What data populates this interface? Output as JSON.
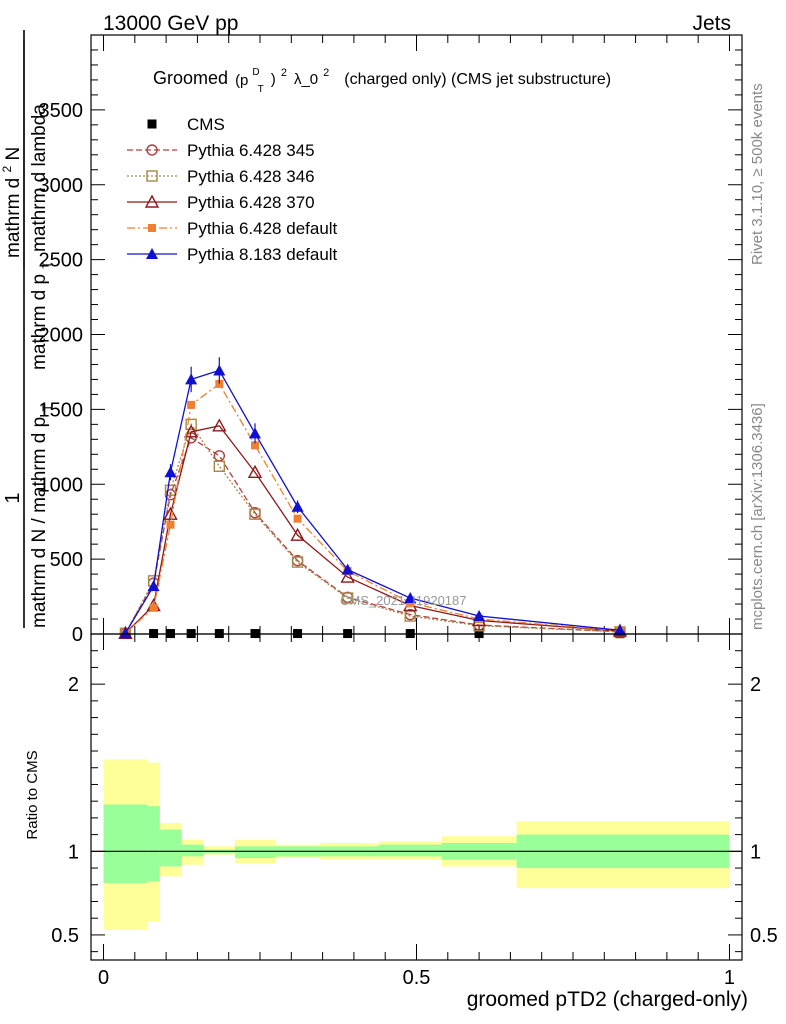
{
  "header": {
    "left": "13000 GeV pp",
    "right": "Jets"
  },
  "side_text": {
    "rivet": "Rivet 3.1.10, ≥ 500k events",
    "mcplots": "mcplots.cern.ch [arXiv:1306.3436]"
  },
  "colors": {
    "cms": "#000000",
    "p345": "#b04040",
    "p346": "#a88848",
    "p370": "#901818",
    "p6def": "#f08030",
    "p8def": "#1010d0",
    "band_stat": "#99ff99",
    "band_total": "#ffff99"
  },
  "chart_data": [
    {
      "type": "line",
      "title": "Groomed (p_T^D)^2 λ_0^2  (charged only) (CMS jet substructure)",
      "title_parts": {
        "main": "Groomed",
        "open": "(p",
        "sub": "T",
        "sup": "D",
        "close": ")",
        "power": "2",
        "lambda": "λ_0",
        "tail": "(charged only) (CMS jet substructure)"
      },
      "ylabel": "1 / mathrm d N / mathrm d p_T mathrm d^2N / mathrm d p_T mathrm d lambda",
      "ylabel_parts": {
        "one": "1",
        "den": "mathrm d N / mathrm d p",
        "den_sub": "T",
        "num": "mathrm d",
        "num_sup": "2",
        "num_tail": "N",
        "rden": "mathrm d p",
        "rden_sub": "T",
        "rden_tail": "mathrm d lambda"
      },
      "xlim": [
        -0.02,
        1.02
      ],
      "ylim": [
        0,
        4000
      ],
      "yticks": [
        0,
        500,
        1000,
        1500,
        2000,
        2500,
        3000,
        3500
      ],
      "watermark": "CMS_2021_I1920187",
      "legend_position": "top-left",
      "x": [
        0.035,
        0.08,
        0.107,
        0.14,
        0.185,
        0.242,
        0.31,
        0.39,
        0.49,
        0.6,
        0.825
      ],
      "x_bin_edges": [
        0.0,
        0.07,
        0.09,
        0.125,
        0.16,
        0.21,
        0.275,
        0.345,
        0.44,
        0.54,
        0.66,
        1.0
      ],
      "series": [
        {
          "name": "CMS",
          "key": "cms",
          "marker": "filled-square",
          "values": [
            2,
            3,
            3,
            3,
            3,
            3,
            3,
            3,
            3,
            3,
            2
          ]
        },
        {
          "name": "Pythia 6.428 345",
          "key": "p345",
          "marker": "open-circle",
          "dash": "6,3",
          "values": [
            5,
            340,
            930,
            1310,
            1190,
            810,
            490,
            245,
            130,
            60,
            15
          ]
        },
        {
          "name": "Pythia 6.428 346",
          "key": "p346",
          "marker": "open-square",
          "dash": "2,2",
          "values": [
            5,
            355,
            960,
            1400,
            1120,
            800,
            480,
            240,
            120,
            55,
            14
          ]
        },
        {
          "name": "Pythia 6.428 370",
          "key": "p370",
          "marker": "open-triangle",
          "dash": "",
          "values": [
            5,
            190,
            800,
            1350,
            1390,
            1080,
            660,
            380,
            190,
            90,
            20
          ]
        },
        {
          "name": "Pythia 6.428 default",
          "key": "p6def",
          "marker": "filled-square-small",
          "dash": "8,3,2,3",
          "values": [
            5,
            175,
            730,
            1530,
            1670,
            1260,
            770,
            420,
            210,
            100,
            22
          ]
        },
        {
          "name": "Pythia 8.183 default",
          "key": "p8def",
          "marker": "filled-triangle",
          "dash": "",
          "values": [
            5,
            320,
            1080,
            1700,
            1760,
            1340,
            850,
            430,
            240,
            120,
            25
          ]
        }
      ]
    },
    {
      "type": "area",
      "title": "Ratio to CMS",
      "xlabel": "groomed pTD2 (charged-only)",
      "ylabel": "Ratio to CMS",
      "xlim": [
        -0.02,
        1.02
      ],
      "ylim": [
        0.35,
        2.3
      ],
      "yticks": [
        0.5,
        1,
        2
      ],
      "ytick_labels": [
        "0.5",
        "1",
        "2"
      ],
      "xticks": [
        0,
        0.5,
        1
      ],
      "xtick_labels": [
        "0",
        "0.5",
        "1"
      ],
      "reference": 1,
      "bands": [
        {
          "x0": 0.0,
          "x1": 0.07,
          "stat": [
            0.81,
            1.28
          ],
          "total": [
            0.53,
            1.55
          ]
        },
        {
          "x0": 0.07,
          "x1": 0.09,
          "stat": [
            0.82,
            1.27
          ],
          "total": [
            0.58,
            1.53
          ]
        },
        {
          "x0": 0.09,
          "x1": 0.125,
          "stat": [
            0.91,
            1.13
          ],
          "total": [
            0.85,
            1.17
          ]
        },
        {
          "x0": 0.125,
          "x1": 0.16,
          "stat": [
            0.97,
            1.04
          ],
          "total": [
            0.92,
            1.07
          ]
        },
        {
          "x0": 0.16,
          "x1": 0.21,
          "stat": [
            0.99,
            1.01
          ],
          "total": [
            0.98,
            1.03
          ]
        },
        {
          "x0": 0.21,
          "x1": 0.275,
          "stat": [
            0.96,
            1.03
          ],
          "total": [
            0.93,
            1.07
          ]
        },
        {
          "x0": 0.275,
          "x1": 0.345,
          "stat": [
            0.97,
            1.03
          ],
          "total": [
            0.96,
            1.04
          ]
        },
        {
          "x0": 0.345,
          "x1": 0.44,
          "stat": [
            0.97,
            1.03
          ],
          "total": [
            0.95,
            1.05
          ]
        },
        {
          "x0": 0.44,
          "x1": 0.54,
          "stat": [
            0.97,
            1.04
          ],
          "total": [
            0.95,
            1.06
          ]
        },
        {
          "x0": 0.54,
          "x1": 0.66,
          "stat": [
            0.95,
            1.05
          ],
          "total": [
            0.91,
            1.09
          ]
        },
        {
          "x0": 0.66,
          "x1": 1.0,
          "stat": [
            0.9,
            1.1
          ],
          "total": [
            0.78,
            1.18
          ]
        }
      ]
    }
  ]
}
